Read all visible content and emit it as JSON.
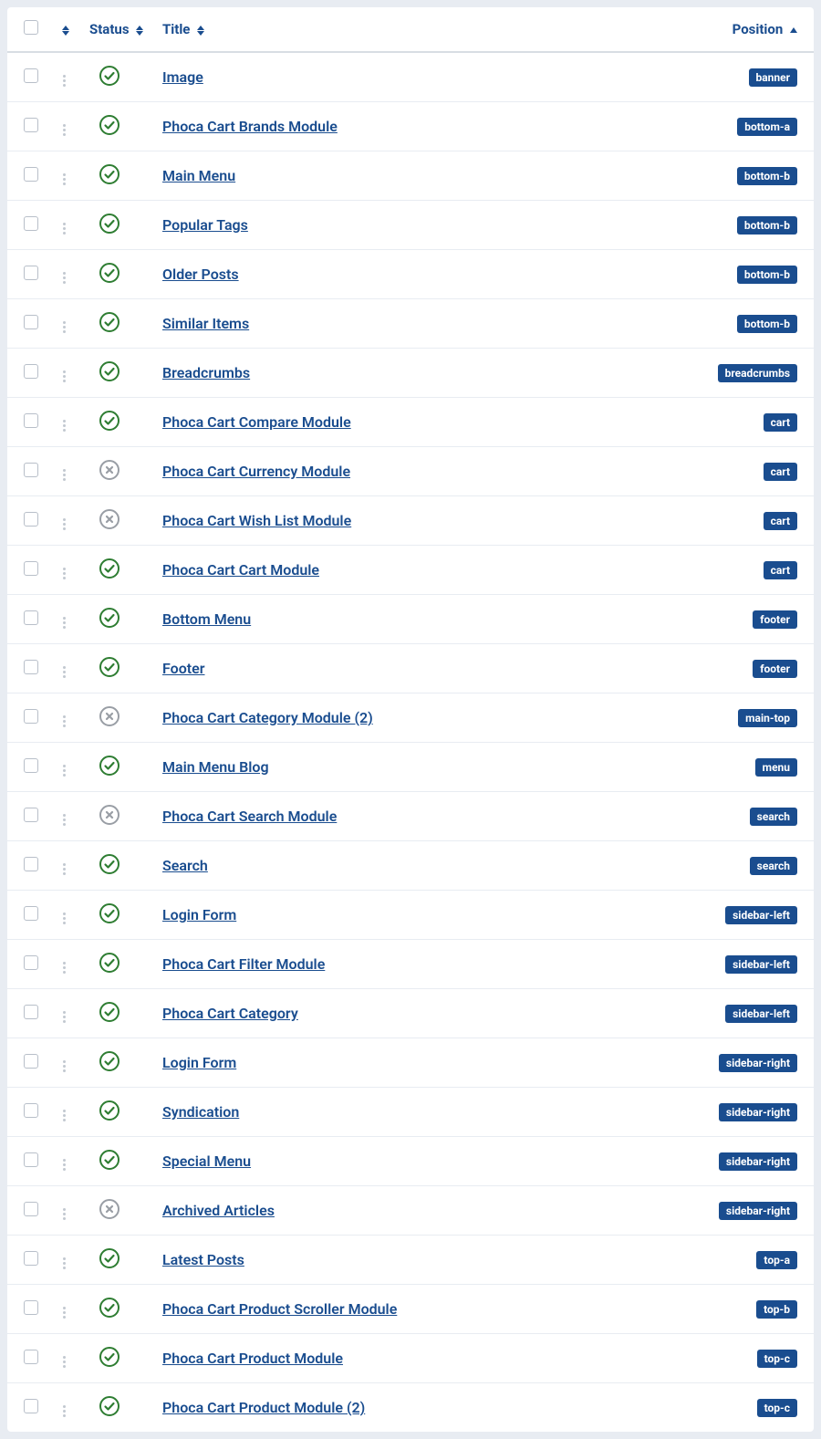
{
  "colors": {
    "brand": "#1a4d8f",
    "row_border": "#e8ecf2",
    "header_border": "#d8dde3",
    "page_bg": "#e8ecf2",
    "panel_bg": "#ffffff",
    "status_published": "#2e7d32",
    "status_unpublished": "#999ea5",
    "checkbox_border": "#b8bfc9",
    "drag_dot": "#c2c8d0"
  },
  "header": {
    "status_label": "Status",
    "title_label": "Title",
    "position_label": "Position"
  },
  "rows": [
    {
      "title": "Image",
      "position": "banner",
      "status": "published"
    },
    {
      "title": "Phoca Cart Brands Module",
      "position": "bottom-a",
      "status": "published"
    },
    {
      "title": "Main Menu",
      "position": "bottom-b",
      "status": "published"
    },
    {
      "title": "Popular Tags",
      "position": "bottom-b",
      "status": "published"
    },
    {
      "title": "Older Posts",
      "position": "bottom-b",
      "status": "published"
    },
    {
      "title": "Similar Items",
      "position": "bottom-b",
      "status": "published"
    },
    {
      "title": "Breadcrumbs",
      "position": "breadcrumbs",
      "status": "published"
    },
    {
      "title": "Phoca Cart Compare Module",
      "position": "cart",
      "status": "published"
    },
    {
      "title": "Phoca Cart Currency Module",
      "position": "cart",
      "status": "unpublished"
    },
    {
      "title": "Phoca Cart Wish List Module",
      "position": "cart",
      "status": "unpublished"
    },
    {
      "title": "Phoca Cart Cart Module",
      "position": "cart",
      "status": "published"
    },
    {
      "title": "Bottom Menu",
      "position": "footer",
      "status": "published"
    },
    {
      "title": "Footer",
      "position": "footer",
      "status": "published"
    },
    {
      "title": "Phoca Cart Category Module (2)",
      "position": "main-top",
      "status": "unpublished"
    },
    {
      "title": "Main Menu Blog",
      "position": "menu",
      "status": "published"
    },
    {
      "title": "Phoca Cart Search Module",
      "position": "search",
      "status": "unpublished"
    },
    {
      "title": "Search",
      "position": "search",
      "status": "published"
    },
    {
      "title": "Login Form",
      "position": "sidebar-left",
      "status": "published"
    },
    {
      "title": "Phoca Cart Filter Module",
      "position": "sidebar-left",
      "status": "published"
    },
    {
      "title": "Phoca Cart Category",
      "position": "sidebar-left",
      "status": "published"
    },
    {
      "title": "Login Form",
      "position": "sidebar-right",
      "status": "published"
    },
    {
      "title": "Syndication",
      "position": "sidebar-right",
      "status": "published"
    },
    {
      "title": "Special Menu",
      "position": "sidebar-right",
      "status": "published"
    },
    {
      "title": "Archived Articles",
      "position": "sidebar-right",
      "status": "unpublished"
    },
    {
      "title": "Latest Posts",
      "position": "top-a",
      "status": "published"
    },
    {
      "title": "Phoca Cart Product Scroller Module",
      "position": "top-b",
      "status": "published"
    },
    {
      "title": "Phoca Cart Product Module",
      "position": "top-c",
      "status": "published"
    },
    {
      "title": "Phoca Cart Product Module (2)",
      "position": "top-c",
      "status": "published"
    }
  ]
}
